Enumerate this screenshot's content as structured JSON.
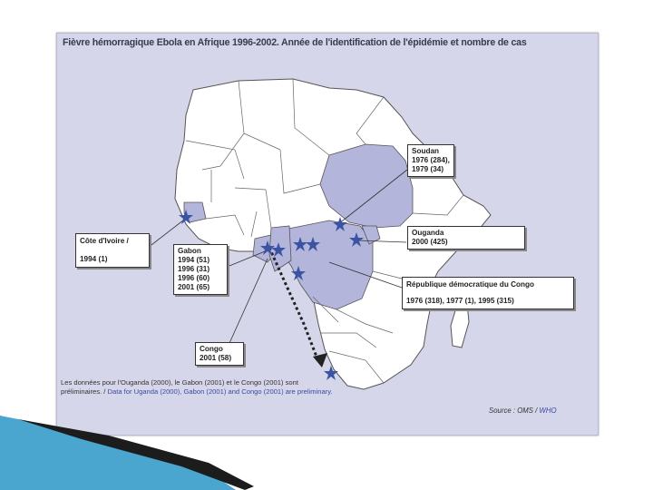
{
  "title": "Fièvre hémorragique Ebola en Afrique 1996-2002. Année de l'identification de l'épidémie et nombre de cas",
  "labels": {
    "soudan": {
      "name": "Soudan",
      "line1": "1976 (284),",
      "line2": "1979 (34)"
    },
    "ouganda": {
      "name": "Ouganda",
      "line1": "2000 (425)"
    },
    "rdc": {
      "name": "République démocratique du Congo",
      "line1": "1976 (318), 1977 (1), 1995 (315)"
    },
    "cote_ivoire": {
      "name": "Côte d'Ivoire /",
      "line1": "1994 (1)"
    },
    "gabon": {
      "name": "Gabon",
      "line1": "1994 (51)",
      "line2": "1996 (31)",
      "line3": "1996 (60)",
      "line4": "2001 (65)"
    },
    "congo": {
      "name": "Congo",
      "line1": "2001 (58)"
    }
  },
  "footnote": {
    "fr": "Les données pour l'Ouganda (2000), le Gabon (2001) et le Congo (2001) sont préliminaires. /",
    "en": "Data for Uganda (2000), Gabon (2001) and Congo (2001) are preliminary."
  },
  "source": {
    "fr": "Source : OMS /",
    "en": "WHO"
  },
  "colors": {
    "highlight": "#b3b5db",
    "land": "#ffffff",
    "sea": "#d6d6ea",
    "star": "#3b53a3",
    "border": "#555555"
  }
}
